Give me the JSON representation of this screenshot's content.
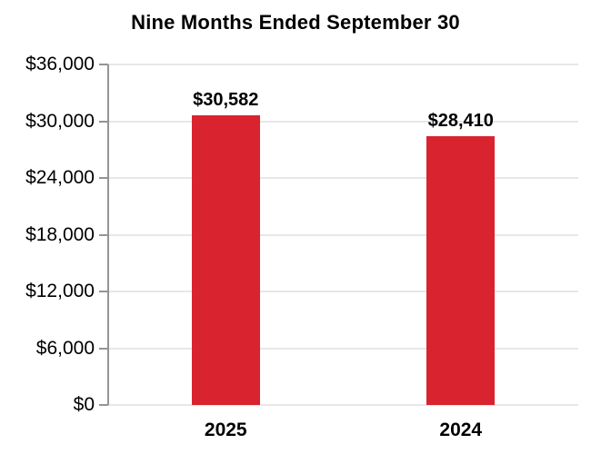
{
  "chart_data": {
    "type": "bar",
    "title": "Nine Months Ended September 30",
    "categories": [
      "2025",
      "2024"
    ],
    "values": [
      30582,
      28410
    ],
    "value_labels": [
      "$30,582",
      "$28,410"
    ],
    "xlabel": "",
    "ylabel": "",
    "ylim": [
      0,
      36000
    ],
    "ytick_values": [
      0,
      6000,
      12000,
      18000,
      24000,
      30000,
      36000
    ],
    "ytick_labels": [
      "$0",
      "$6,000",
      "$12,000",
      "$18,000",
      "$24,000",
      "$30,000",
      "$36,000"
    ],
    "grid": true,
    "legend": false,
    "bar_color": "#D9232E",
    "axis_color": "#949494",
    "gridline_color": "#E7E7E7",
    "text_color": "#000000"
  }
}
